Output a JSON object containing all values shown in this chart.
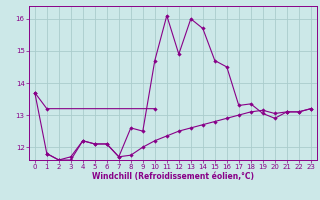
{
  "xlabel": "Windchill (Refroidissement éolien,°C)",
  "bg_color": "#cce8e8",
  "grid_color": "#aacccc",
  "line_color": "#880088",
  "xlim": [
    -0.5,
    23.5
  ],
  "ylim": [
    11.6,
    16.4
  ],
  "yticks": [
    12,
    13,
    14,
    15,
    16
  ],
  "xticks": [
    0,
    1,
    2,
    3,
    4,
    5,
    6,
    7,
    8,
    9,
    10,
    11,
    12,
    13,
    14,
    15,
    16,
    17,
    18,
    19,
    20,
    21,
    22,
    23
  ],
  "series": {
    "line1_x": [
      0,
      1,
      10
    ],
    "line1_y": [
      13.7,
      13.2,
      13.2
    ],
    "line2_x": [
      0,
      1,
      2,
      3,
      4,
      5,
      6,
      7,
      8,
      9,
      10,
      11,
      12,
      13,
      14,
      15,
      16,
      17,
      18,
      19,
      20,
      21
    ],
    "line2_y": [
      13.7,
      11.8,
      11.6,
      11.6,
      12.2,
      12.1,
      12.1,
      11.7,
      12.6,
      12.5,
      14.7,
      16.1,
      14.9,
      16.0,
      15.7,
      14.7,
      14.5,
      13.3,
      13.35,
      13.05,
      12.9,
      13.1
    ],
    "line3_x": [
      21,
      22,
      23
    ],
    "line3_y": [
      13.1,
      13.1,
      13.2
    ],
    "line4_x": [
      1,
      2,
      3,
      4,
      5,
      6,
      7,
      8,
      9,
      10,
      11,
      12,
      13,
      14,
      15,
      16,
      17,
      18,
      19,
      20,
      21,
      22,
      23
    ],
    "line4_y": [
      11.8,
      11.6,
      11.7,
      12.2,
      12.1,
      12.1,
      11.7,
      11.75,
      12.0,
      12.2,
      12.35,
      12.5,
      12.6,
      12.7,
      12.8,
      12.9,
      13.0,
      13.1,
      13.15,
      13.05,
      13.1,
      13.1,
      13.2
    ]
  }
}
